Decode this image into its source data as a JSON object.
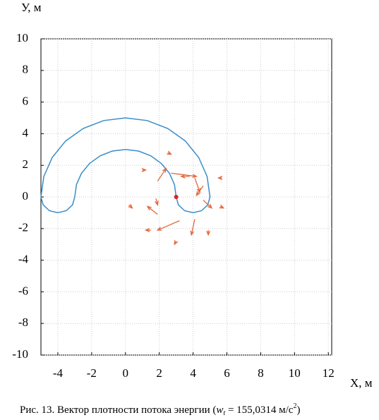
{
  "chart_data": {
    "type": "quiver",
    "y_label": "У, м",
    "x_label": "X, м",
    "xlim": [
      -5,
      12.2
    ],
    "ylim": [
      -10,
      10
    ],
    "xticks": [
      -4,
      -2,
      0,
      2,
      4,
      6,
      8,
      10,
      12
    ],
    "yticks": [
      -10,
      -8,
      -6,
      -4,
      -2,
      0,
      2,
      4,
      6,
      8,
      10
    ],
    "grid": true,
    "curve": {
      "color": "#3a8dc8",
      "x": [
        -5,
        -4.83,
        -4.33,
        -3.54,
        -2.5,
        -1.29,
        0,
        1.29,
        2.5,
        3.54,
        4.33,
        4.83,
        5,
        4.87,
        4.5,
        4,
        3.5,
        3.13,
        3,
        2.9,
        2.6,
        2.12,
        1.5,
        0.78,
        0,
        -0.78,
        -1.5,
        -2.12,
        -2.6,
        -2.9,
        -3,
        -3.13,
        -3.5,
        -4,
        -4.5,
        -4.87,
        -5
      ],
      "y": [
        0,
        1.29,
        2.5,
        3.54,
        4.33,
        4.83,
        5,
        4.83,
        4.33,
        3.54,
        2.5,
        1.29,
        0,
        -0.5,
        -0.87,
        -1,
        -0.87,
        -0.5,
        0,
        0.78,
        1.5,
        2.12,
        2.6,
        2.9,
        3,
        2.9,
        2.6,
        2.12,
        1.5,
        0.78,
        0,
        -0.5,
        -0.87,
        -1,
        -0.87,
        -0.5,
        0
      ]
    },
    "vectors": {
      "color": "#e2683c",
      "x": [
        1.9,
        2.7,
        3.8,
        4.1,
        4.6,
        4.6,
        4.1,
        3.2,
        1.9,
        1.8,
        1.5,
        4.9,
        3.0,
        5.6,
        5.7,
        0.2,
        2.5,
        1.0
      ],
      "y": [
        1.0,
        1.5,
        1.3,
        1.2,
        0.7,
        -0.2,
        -1.4,
        -1.5,
        -1.1,
        -0.1,
        -2.1,
        -2.1,
        -2.8,
        -0.6,
        1.2,
        -0.5,
        2.8,
        1.7
      ],
      "u": [
        0.5,
        1.5,
        -0.5,
        0.3,
        -0.4,
        0.5,
        -0.2,
        -1.3,
        -0.6,
        0.1,
        -0.3,
        0,
        -0.1,
        0.2,
        -0.2,
        0.2,
        0.2,
        0.2
      ],
      "v": [
        0.8,
        -0.2,
        0,
        -0.9,
        -0.6,
        -0.5,
        -1.0,
        -0.6,
        0.5,
        -0.4,
        0,
        -0.3,
        -0.2,
        -0.1,
        0,
        -0.2,
        -0.1,
        0
      ]
    },
    "source": {
      "x": 3,
      "y": 0,
      "color": "#e0201a"
    }
  },
  "caption": {
    "prefix": "Рис. 13. Вектор плотности потока энергии (",
    "symbol": "w",
    "subscript": "t",
    "middle": " = 155,0314 м/с",
    "superscript": "2",
    "suffix": ")"
  }
}
